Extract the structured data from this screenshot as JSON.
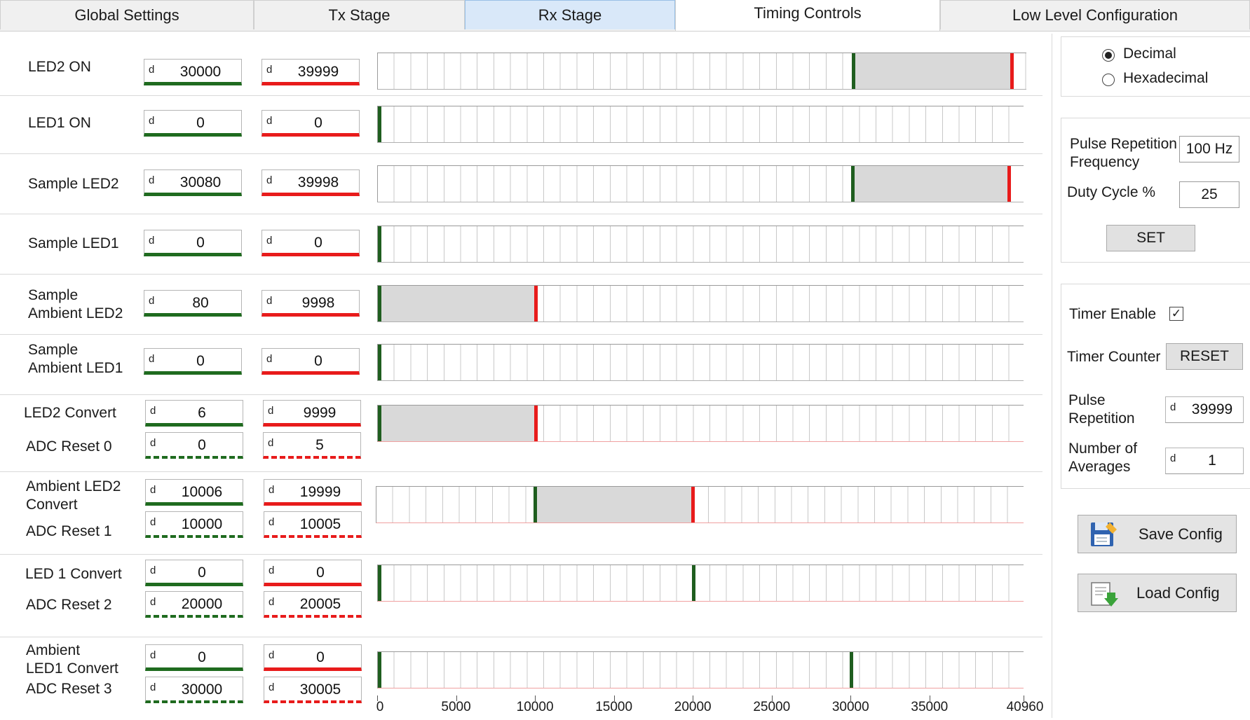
{
  "tabs": [
    {
      "label": "Global Settings"
    },
    {
      "label": "Tx Stage"
    },
    {
      "label": "Rx Stage"
    },
    {
      "label": "Timing Controls"
    },
    {
      "label": "Low Level Configuration"
    }
  ],
  "rows": [
    {
      "label": "LED2 ON",
      "start": {
        "prefix": "d",
        "value": "30000"
      },
      "end": {
        "prefix": "d",
        "value": "39999"
      }
    },
    {
      "label": "LED1 ON",
      "start": {
        "prefix": "d",
        "value": "0"
      },
      "end": {
        "prefix": "d",
        "value": "0"
      }
    },
    {
      "label": "Sample LED2",
      "start": {
        "prefix": "d",
        "value": "30080"
      },
      "end": {
        "prefix": "d",
        "value": "39998"
      }
    },
    {
      "label": "Sample LED1",
      "start": {
        "prefix": "d",
        "value": "0"
      },
      "end": {
        "prefix": "d",
        "value": "0"
      }
    },
    {
      "label_line1": "Sample",
      "label_line2": "Ambient LED2",
      "start": {
        "prefix": "d",
        "value": "80"
      },
      "end": {
        "prefix": "d",
        "value": "9998"
      }
    },
    {
      "label_line1": "Sample",
      "label_line2": "Ambient LED1",
      "start": {
        "prefix": "d",
        "value": "0"
      },
      "end": {
        "prefix": "d",
        "value": "0"
      }
    },
    {
      "label": "LED2 Convert",
      "start": {
        "prefix": "d",
        "value": "6"
      },
      "end": {
        "prefix": "d",
        "value": "9999"
      },
      "reset_label": "ADC Reset 0",
      "reset_start": {
        "prefix": "d",
        "value": "0"
      },
      "reset_end": {
        "prefix": "d",
        "value": "5"
      }
    },
    {
      "label_line1": "Ambient LED2",
      "label_line2": "Convert",
      "start": {
        "prefix": "d",
        "value": "10006"
      },
      "end": {
        "prefix": "d",
        "value": "19999"
      },
      "reset_label": "ADC Reset 1",
      "reset_start": {
        "prefix": "d",
        "value": "10000"
      },
      "reset_end": {
        "prefix": "d",
        "value": "10005"
      }
    },
    {
      "label": "LED 1 Convert",
      "start": {
        "prefix": "d",
        "value": "0"
      },
      "end": {
        "prefix": "d",
        "value": "0"
      },
      "reset_label": "ADC Reset 2",
      "reset_start": {
        "prefix": "d",
        "value": "20000"
      },
      "reset_end": {
        "prefix": "d",
        "value": "20005"
      }
    },
    {
      "label_line1": "Ambient",
      "label_line2": "LED1 Convert",
      "start": {
        "prefix": "d",
        "value": "0"
      },
      "end": {
        "prefix": "d",
        "value": "0"
      },
      "reset_label": "ADC Reset 3",
      "reset_start": {
        "prefix": "d",
        "value": "30000"
      },
      "reset_end": {
        "prefix": "d",
        "value": "30005"
      }
    }
  ],
  "timeline": {
    "max": 40960,
    "ticks": [
      "0",
      "5000",
      "10000",
      "15000",
      "20000",
      "25000",
      "30000",
      "35000",
      "40960"
    ],
    "colors": {
      "start": "#1f5e1f",
      "end": "#e81b1b",
      "fill": "#d9d9d9"
    }
  },
  "number_format": {
    "options": [
      "Decimal",
      "Hexadecimal"
    ],
    "selected": "Decimal"
  },
  "prf": {
    "label_line1": "Pulse Repetition",
    "label_line2": "Frequency",
    "value": "100 Hz",
    "duty_label": "Duty Cycle %",
    "duty_value": "25",
    "set_label": "SET"
  },
  "timer": {
    "enable_label": "Timer Enable",
    "enabled": true,
    "counter_label": "Timer Counter",
    "reset_label": "RESET",
    "pulse_label_line1": "Pulse",
    "pulse_label_line2": "Repetition",
    "pulse_prefix": "d",
    "pulse_value": "39999",
    "avg_label_line1": "Number of",
    "avg_label_line2": "Averages",
    "avg_prefix": "d",
    "avg_value": "1"
  },
  "buttons": {
    "save": "Save Config",
    "load": "Load Config"
  }
}
